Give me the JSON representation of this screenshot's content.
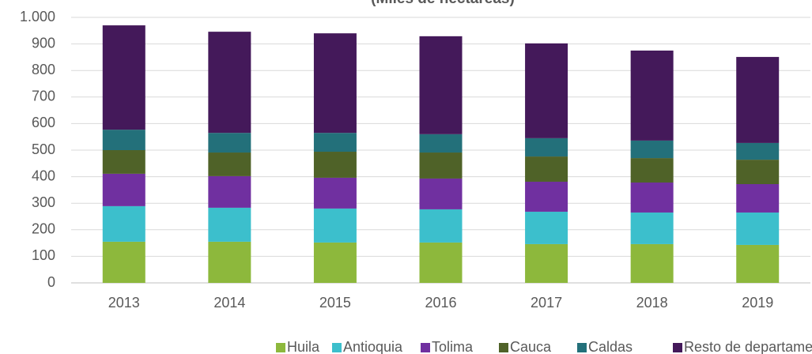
{
  "chart_data": {
    "type": "stacked_bar",
    "title": "(Miles de hectáreas)",
    "categories": [
      "2013",
      "2014",
      "2015",
      "2016",
      "2017",
      "2018",
      "2019"
    ],
    "series": [
      {
        "name": "Huila",
        "color": "#8db83c",
        "values": [
          155,
          155,
          152,
          152,
          146,
          146,
          143
        ]
      },
      {
        "name": "Antioquia",
        "color": "#3cbfcc",
        "values": [
          134,
          128,
          128,
          125,
          122,
          119,
          122
        ]
      },
      {
        "name": "Tolima",
        "color": "#7030a0",
        "values": [
          122,
          119,
          116,
          116,
          113,
          113,
          107
        ]
      },
      {
        "name": "Cauca",
        "color": "#4f6228",
        "values": [
          89,
          89,
          98,
          98,
          95,
          92,
          92
        ]
      },
      {
        "name": "Caldas",
        "color": "#23707a",
        "values": [
          77,
          74,
          71,
          69,
          69,
          66,
          63
        ]
      },
      {
        "name": "Resto de departamentos",
        "color": "#44195a",
        "values": [
          393,
          381,
          375,
          369,
          357,
          339,
          324
        ]
      }
    ],
    "ylim": [
      0,
      1000
    ],
    "yticks": [
      0,
      100,
      200,
      300,
      400,
      500,
      600,
      700,
      800,
      900,
      {
        "value": 1000,
        "label": "1.000"
      }
    ],
    "grid": true,
    "legend": "bottom"
  }
}
